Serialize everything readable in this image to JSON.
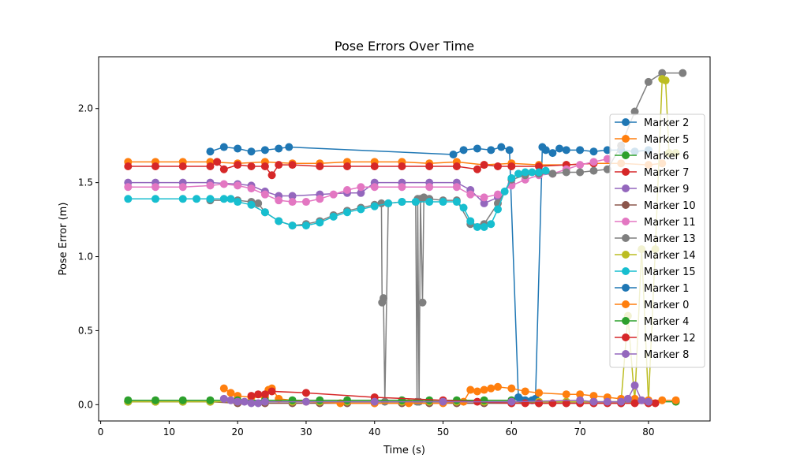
{
  "chart_data": {
    "type": "line",
    "title": "Pose Errors Over Time",
    "xlabel": "Time (s)",
    "ylabel": "Pose Error (m)",
    "xlim": [
      -0.3,
      89
    ],
    "ylim": [
      -0.11,
      2.35
    ],
    "xticks": [
      0,
      10,
      20,
      30,
      40,
      50,
      60,
      70,
      80
    ],
    "yticks": [
      0.0,
      0.5,
      1.0,
      1.5,
      2.0
    ],
    "xtick_labels": [
      "0",
      "10",
      "20",
      "30",
      "40",
      "50",
      "60",
      "70",
      "80"
    ],
    "ytick_labels": [
      "0.0",
      "0.5",
      "1.0",
      "1.5",
      "2.0"
    ],
    "grid": false,
    "legend_position": "center-right",
    "markers": "circle",
    "series": [
      {
        "name": "Marker 2",
        "color": "#1f77b4",
        "x": [
          16,
          18,
          20,
          22,
          24,
          26,
          27.5,
          51.5,
          53,
          55,
          57,
          58.5,
          59.7,
          61,
          61.5,
          62,
          63,
          63.5,
          64.5,
          65,
          66,
          67,
          68,
          70,
          72,
          74,
          76,
          78,
          80
        ],
        "y": [
          1.71,
          1.74,
          1.73,
          1.71,
          1.72,
          1.73,
          1.74,
          1.69,
          1.72,
          1.73,
          1.72,
          1.74,
          1.72,
          0.05,
          0.03,
          0.03,
          0.03,
          0.04,
          1.74,
          1.72,
          1.7,
          1.73,
          1.72,
          1.72,
          1.71,
          1.72,
          1.72,
          1.71,
          1.72
        ]
      },
      {
        "name": "Marker 5",
        "color": "#ff7f0e",
        "x": [
          4,
          8,
          12,
          16,
          20,
          24,
          28,
          32,
          36,
          40,
          44,
          48,
          52,
          56,
          60,
          64,
          68,
          72,
          76,
          80,
          82
        ],
        "y": [
          1.64,
          1.64,
          1.64,
          1.64,
          1.63,
          1.64,
          1.63,
          1.63,
          1.64,
          1.64,
          1.64,
          1.63,
          1.64,
          1.62,
          1.63,
          1.62,
          1.62,
          1.63,
          1.63,
          1.62,
          1.63
        ]
      },
      {
        "name": "Marker 6",
        "color": "#2ca02c",
        "x": [
          4,
          8,
          12,
          16,
          20,
          24,
          28,
          32,
          36,
          40,
          44,
          48,
          52,
          56,
          60,
          64,
          68,
          72,
          76,
          80,
          84
        ],
        "y": [
          0.02,
          0.02,
          0.02,
          0.02,
          0.02,
          0.02,
          0.02,
          0.02,
          0.02,
          0.02,
          0.02,
          0.02,
          0.02,
          0.02,
          0.02,
          0.02,
          0.02,
          0.02,
          0.02,
          0.02,
          0.02
        ]
      },
      {
        "name": "Marker 7",
        "color": "#d62728",
        "x": [
          4,
          8,
          12,
          16,
          17,
          18,
          20,
          22,
          24,
          25,
          26,
          28,
          32,
          36,
          40,
          44,
          48,
          52,
          55,
          56,
          58,
          60,
          64,
          68,
          72
        ],
        "y": [
          1.61,
          1.61,
          1.61,
          1.61,
          1.64,
          1.59,
          1.62,
          1.61,
          1.61,
          1.55,
          1.62,
          1.62,
          1.61,
          1.61,
          1.61,
          1.61,
          1.61,
          1.61,
          1.59,
          1.62,
          1.61,
          1.61,
          1.61,
          1.62,
          1.63
        ]
      },
      {
        "name": "Marker 9",
        "color": "#9467bd",
        "x": [
          4,
          8,
          12,
          16,
          20,
          22,
          24,
          26,
          28,
          32,
          36,
          38,
          40,
          44,
          48,
          52,
          54,
          56,
          58,
          60
        ],
        "y": [
          1.5,
          1.5,
          1.5,
          1.5,
          1.49,
          1.48,
          1.44,
          1.41,
          1.41,
          1.42,
          1.43,
          1.43,
          1.5,
          1.5,
          1.5,
          1.5,
          1.45,
          1.36,
          1.4,
          1.49
        ]
      },
      {
        "name": "Marker 10",
        "color": "#8c564b",
        "x": [
          4,
          8,
          12,
          16,
          20,
          24,
          28,
          32,
          36,
          40,
          44,
          48,
          52,
          56,
          60,
          64,
          68,
          72,
          76,
          80
        ],
        "y": [
          0.02,
          0.02,
          0.02,
          0.02,
          0.01,
          0.01,
          0.01,
          0.01,
          0.01,
          0.01,
          0.01,
          0.01,
          0.01,
          0.01,
          0.01,
          0.01,
          0.01,
          0.01,
          0.01,
          0.01
        ]
      },
      {
        "name": "Marker 11",
        "color": "#e377c2",
        "x": [
          4,
          8,
          12,
          16,
          18,
          20,
          22,
          24,
          26,
          28,
          30,
          32,
          34,
          36,
          38,
          40,
          44,
          48,
          52,
          54,
          56,
          58,
          60,
          62,
          64,
          66,
          68,
          70,
          72,
          74
        ],
        "y": [
          1.47,
          1.47,
          1.47,
          1.48,
          1.49,
          1.48,
          1.46,
          1.42,
          1.38,
          1.37,
          1.37,
          1.39,
          1.42,
          1.45,
          1.47,
          1.47,
          1.47,
          1.47,
          1.47,
          1.42,
          1.4,
          1.42,
          1.48,
          1.52,
          1.55,
          1.56,
          1.59,
          1.62,
          1.64,
          1.66
        ]
      },
      {
        "name": "Marker 13",
        "color": "#7f7f7f",
        "x": [
          16,
          20,
          22,
          23,
          24,
          26,
          28,
          30,
          32,
          34,
          36,
          38,
          40,
          41,
          41.1,
          41.3,
          41.5,
          42,
          44,
          46,
          46.2,
          46.3,
          46.5,
          46.7,
          47,
          47.2,
          48,
          50,
          52,
          54,
          56,
          58,
          60,
          62,
          64,
          66,
          68,
          70,
          72,
          74,
          76,
          78,
          80,
          82,
          85
        ],
        "y": [
          1.38,
          1.38,
          1.37,
          1.36,
          1.3,
          1.24,
          1.21,
          1.22,
          1.24,
          1.28,
          1.31,
          1.33,
          1.35,
          1.36,
          0.69,
          0.72,
          0.02,
          1.36,
          1.37,
          1.37,
          0.02,
          1.39,
          0.02,
          1.39,
          0.69,
          1.4,
          1.39,
          1.38,
          1.38,
          1.22,
          1.22,
          1.36,
          1.52,
          1.55,
          1.56,
          1.56,
          1.57,
          1.57,
          1.58,
          1.59,
          1.75,
          1.98,
          2.18,
          2.24,
          2.24
        ]
      },
      {
        "name": "Marker 14",
        "color": "#bcbd22",
        "x": [
          4,
          8,
          12,
          16,
          20,
          24,
          28,
          32,
          36,
          40,
          44,
          48,
          52,
          56,
          60,
          64,
          68,
          72,
          76,
          77,
          78,
          79,
          80,
          81,
          82,
          82.5,
          83,
          84
        ],
        "y": [
          0.02,
          0.02,
          0.02,
          0.02,
          0.02,
          0.02,
          0.02,
          0.02,
          0.02,
          0.02,
          0.02,
          0.02,
          0.02,
          0.02,
          0.02,
          0.02,
          0.02,
          0.02,
          0.02,
          0.6,
          0.02,
          1.05,
          0.02,
          1.05,
          2.2,
          2.19,
          1.7,
          1.7
        ]
      },
      {
        "name": "Marker 15",
        "color": "#17becf",
        "x": [
          4,
          8,
          12,
          14,
          16,
          18,
          19,
          20,
          22,
          24,
          26,
          28,
          30,
          32,
          34,
          36,
          38,
          40,
          42,
          44,
          46,
          48,
          50,
          52,
          53,
          54,
          55,
          56,
          57,
          58,
          59,
          60,
          61,
          62,
          63,
          64,
          65
        ],
        "y": [
          1.39,
          1.39,
          1.39,
          1.39,
          1.39,
          1.39,
          1.39,
          1.37,
          1.35,
          1.3,
          1.24,
          1.21,
          1.21,
          1.23,
          1.27,
          1.3,
          1.32,
          1.34,
          1.36,
          1.37,
          1.37,
          1.37,
          1.37,
          1.37,
          1.33,
          1.24,
          1.2,
          1.2,
          1.22,
          1.32,
          1.44,
          1.53,
          1.56,
          1.57,
          1.57,
          1.57,
          1.58
        ]
      },
      {
        "name": "Marker 1",
        "color": "#1f77b4",
        "x": [],
        "y": []
      },
      {
        "name": "Marker 0",
        "color": "#ff7f0e",
        "x": [
          18,
          19,
          20,
          22,
          24,
          24.5,
          25,
          26,
          30,
          35,
          40,
          45,
          50,
          53,
          54,
          55,
          56,
          57,
          58,
          60,
          62,
          64,
          68,
          70,
          72,
          74,
          76,
          78,
          80,
          82,
          84
        ],
        "y": [
          0.11,
          0.08,
          0.06,
          0.05,
          0.05,
          0.1,
          0.11,
          0.04,
          0.02,
          0.01,
          0.01,
          0.01,
          0.01,
          0.02,
          0.1,
          0.09,
          0.1,
          0.11,
          0.12,
          0.11,
          0.09,
          0.08,
          0.07,
          0.07,
          0.06,
          0.05,
          0.04,
          0.04,
          0.03,
          0.03,
          0.03
        ]
      },
      {
        "name": "Marker 4",
        "color": "#2ca02c",
        "x": [
          4,
          8,
          12,
          16,
          20,
          24,
          28,
          32,
          36,
          40,
          44,
          48,
          52,
          56,
          60
        ],
        "y": [
          0.03,
          0.03,
          0.03,
          0.03,
          0.03,
          0.03,
          0.03,
          0.03,
          0.03,
          0.03,
          0.03,
          0.03,
          0.03,
          0.03,
          0.03
        ]
      },
      {
        "name": "Marker 12",
        "color": "#d62728",
        "x": [
          22,
          23,
          24,
          25,
          30,
          40,
          50,
          55,
          60,
          62,
          64,
          66,
          68,
          70,
          72,
          74,
          76,
          78,
          80,
          81
        ],
        "y": [
          0.06,
          0.07,
          0.07,
          0.09,
          0.08,
          0.05,
          0.03,
          0.02,
          0.01,
          0.01,
          0.01,
          0.01,
          0.01,
          0.01,
          0.01,
          0.01,
          0.01,
          0.01,
          0.01,
          0.01
        ]
      },
      {
        "name": "Marker 8",
        "color": "#9467bd",
        "x": [
          18,
          19,
          20,
          21,
          22,
          23,
          24,
          30,
          40,
          50,
          60,
          70,
          72,
          74,
          76,
          77,
          78,
          79,
          80
        ],
        "y": [
          0.04,
          0.03,
          0.02,
          0.02,
          0.01,
          0.01,
          0.02,
          0.02,
          0.02,
          0.02,
          0.02,
          0.03,
          0.02,
          0.02,
          0.02,
          0.04,
          0.13,
          0.03,
          0.02
        ]
      }
    ]
  }
}
